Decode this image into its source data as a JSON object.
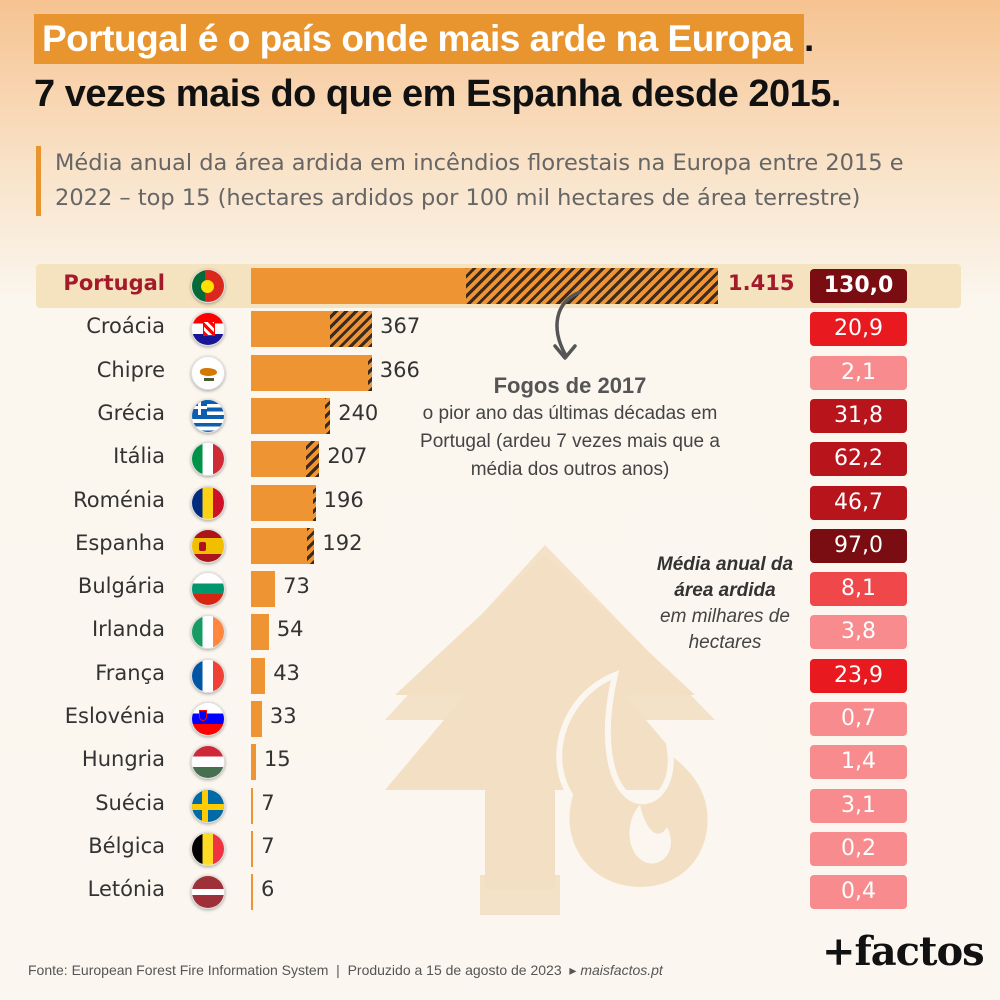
{
  "title": {
    "line1": "Portugal é o país onde mais arde na Europa",
    "line1_end": ".",
    "line2": "7 vezes mais do que em Espanha desde 2015."
  },
  "subtitle": "Média anual da área ardida em incêndios florestais na Europa entre 2015 e 2022 – top 15 (hectares ardidos por 100 mil hectares de área terrestre)",
  "annotation": {
    "head": "Fogos de 2017",
    "body": "o pior ano das últimas décadas em Portugal (ardeu 7 vezes mais que a média dos outros anos)"
  },
  "side_note": {
    "bold": "Média anual da área ardida",
    "normal": "em milhares de hectares"
  },
  "footer": {
    "source": "Fonte: European Forest Fire Information System",
    "produced": "Produzido a 15 de agosto de 2023",
    "site": "maisfactos.pt"
  },
  "logo": "+factos",
  "colors": {
    "bar": "#ee9432",
    "hatch": "#3a2a20",
    "accent": "#e8952f",
    "highlight_text": "#a31a2a"
  },
  "chart_data": {
    "type": "bar",
    "orientation": "horizontal",
    "categories": [
      "Portugal",
      "Croácia",
      "Chipre",
      "Grécia",
      "Itália",
      "Roménia",
      "Espanha",
      "Bulgária",
      "Irlanda",
      "França",
      "Eslovénia",
      "Hungria",
      "Suécia",
      "Bélgica",
      "Letónia"
    ],
    "value_labels": [
      "1.415",
      "367",
      "366",
      "240",
      "207",
      "196",
      "192",
      "73",
      "54",
      "43",
      "33",
      "15",
      "7",
      "7",
      "6"
    ],
    "values": [
      1415,
      367,
      366,
      240,
      207,
      196,
      192,
      73,
      54,
      43,
      33,
      15,
      7,
      7,
      6
    ],
    "fire_2017_share": [
      0.54,
      0.35,
      0.03,
      0.07,
      0.2,
      0.04,
      0.12,
      0,
      0,
      0,
      0,
      0,
      0,
      0,
      0
    ],
    "area_labels": [
      "130,0",
      "20,9",
      "2,1",
      "31,8",
      "62,2",
      "46,7",
      "97,0",
      "8,1",
      "3,8",
      "23,9",
      "0,7",
      "1,4",
      "3,1",
      "0,2",
      "0,4"
    ],
    "area_values": [
      130.0,
      20.9,
      2.1,
      31.8,
      62.2,
      46.7,
      97.0,
      8.1,
      3.8,
      23.9,
      0.7,
      1.4,
      3.1,
      0.2,
      0.4
    ],
    "flags": [
      "flag-portugal-icon",
      "flag-croatia-icon",
      "flag-cyprus-icon",
      "flag-greece-icon",
      "flag-italy-icon",
      "flag-romania-icon",
      "flag-spain-icon",
      "flag-bulgaria-icon",
      "flag-ireland-icon",
      "flag-france-icon",
      "flag-slovenia-icon",
      "flag-hungary-icon",
      "flag-sweden-icon",
      "flag-belgium-icon",
      "flag-latvia-icon"
    ]
  }
}
